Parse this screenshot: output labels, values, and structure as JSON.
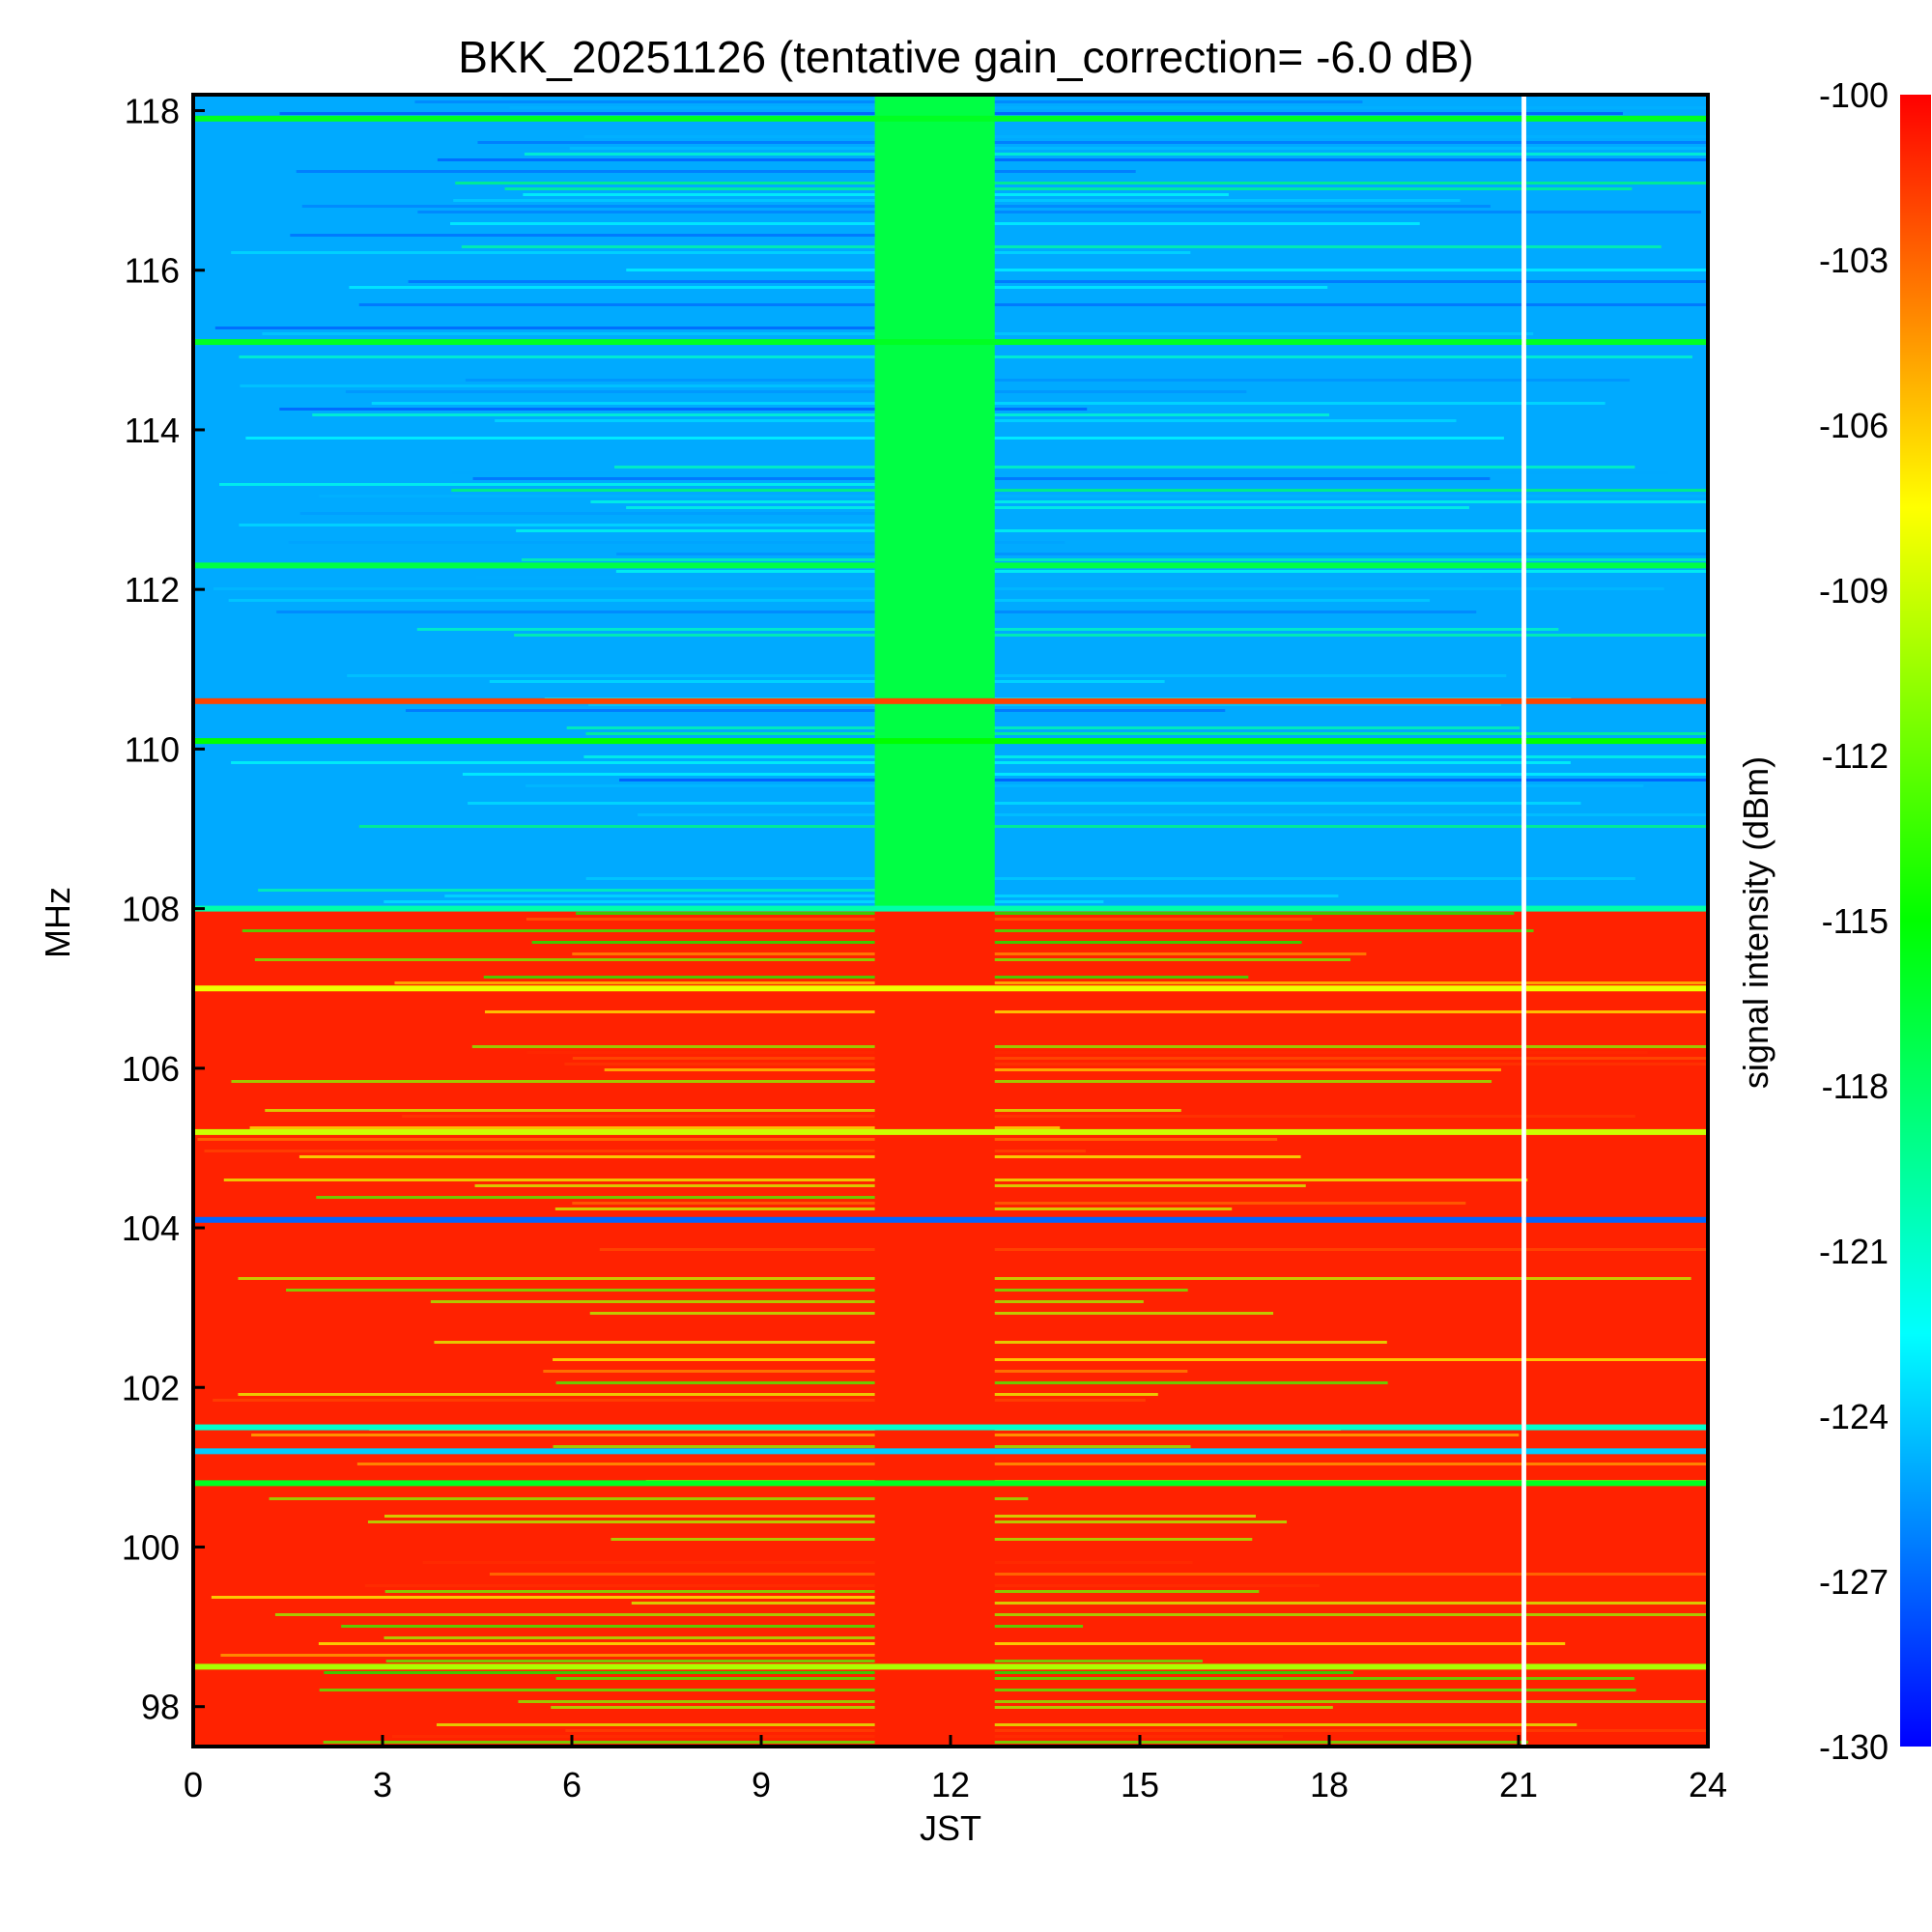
{
  "chart_data": {
    "type": "heatmap",
    "title": "BKK_20251126 (tentative gain_correction= -6.0 dB)",
    "xlabel": "JST",
    "ylabel": "MHz",
    "colorbar_label": "signal intensity (dBm)",
    "xlim": [
      0,
      24
    ],
    "ylim": [
      97.5,
      118.2
    ],
    "xticks": [
      0,
      3,
      6,
      9,
      12,
      15,
      18,
      21,
      24
    ],
    "yticks": [
      98,
      100,
      102,
      104,
      106,
      108,
      110,
      112,
      114,
      116,
      118
    ],
    "color_range": [
      -130,
      -100
    ],
    "colorbar_ticks": [
      -100,
      -103,
      -106,
      -109,
      -112,
      -115,
      -118,
      -121,
      -124,
      -127,
      -130
    ],
    "background_levels": {
      "above_108": -125,
      "below_108": -101
    },
    "vertical_bands": [
      {
        "x_start": 10.8,
        "x_end": 12.7,
        "level_above_108": -117,
        "level_below_108": -101
      },
      {
        "x_start": 21.05,
        "x_end": 21.12,
        "level_above_108": null,
        "level_below_108": null,
        "note": "data gap"
      }
    ],
    "horizontal_lines": [
      {
        "mhz": 117.9,
        "level": -116
      },
      {
        "mhz": 115.1,
        "level": -116
      },
      {
        "mhz": 112.3,
        "level": -117
      },
      {
        "mhz": 110.6,
        "level": -102
      },
      {
        "mhz": 110.1,
        "level": -115
      },
      {
        "mhz": 108.0,
        "level": -120
      },
      {
        "mhz": 107.0,
        "level": -108
      },
      {
        "mhz": 105.2,
        "level": -109
      },
      {
        "mhz": 104.1,
        "level": -127
      },
      {
        "mhz": 101.5,
        "level": -121
      },
      {
        "mhz": 101.2,
        "level": -124
      },
      {
        "mhz": 100.8,
        "level": -116
      },
      {
        "mhz": 98.5,
        "level": -110
      }
    ],
    "colormap": [
      "#0000ff",
      "#00ffff",
      "#00ff00",
      "#ffff00",
      "#ff0000"
    ],
    "colors": {
      "gap": "#ffffff",
      "frame": "#000000"
    }
  }
}
